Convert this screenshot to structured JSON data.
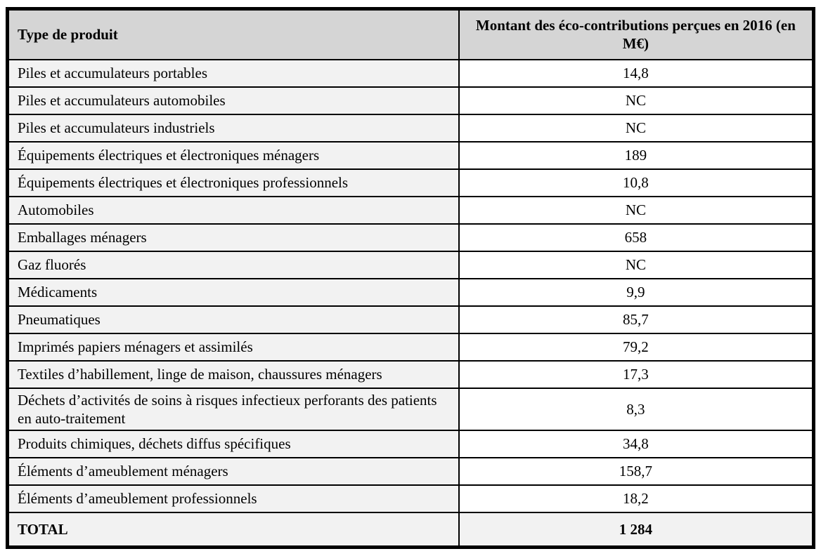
{
  "table": {
    "headers": {
      "product": "Type de produit",
      "amount": "Montant des éco-contributions perçues en 2016 (en M€)"
    },
    "rows": [
      {
        "label": "Piles et accumulateurs portables",
        "value": "14,8"
      },
      {
        "label": "Piles et accumulateurs automobiles",
        "value": "NC"
      },
      {
        "label": "Piles et accumulateurs industriels",
        "value": "NC"
      },
      {
        "label": "Équipements électriques et électroniques ménagers",
        "value": "189"
      },
      {
        "label": "Équipements électriques et électroniques professionnels",
        "value": "10,8"
      },
      {
        "label": "Automobiles",
        "value": "NC"
      },
      {
        "label": "Emballages ménagers",
        "value": "658"
      },
      {
        "label": "Gaz fluorés",
        "value": "NC"
      },
      {
        "label": "Médicaments",
        "value": "9,9"
      },
      {
        "label": "Pneumatiques",
        "value": "85,7"
      },
      {
        "label": "Imprimés papiers ménagers et assimilés",
        "value": "79,2"
      },
      {
        "label": "Textiles d’habillement, linge de maison, chaussures ménagers",
        "value": "17,3"
      },
      {
        "label": "Déchets d’activités de soins à risques infectieux perforants des patients en auto-traitement",
        "value": "8,3"
      },
      {
        "label": "Produits chimiques, déchets diffus spécifiques",
        "value": "34,8"
      },
      {
        "label": "Éléments d’ameublement ménagers",
        "value": "158,7"
      },
      {
        "label": "Éléments d’ameublement professionnels",
        "value": "18,2"
      }
    ],
    "total": {
      "label": "TOTAL",
      "value": "1 284"
    }
  },
  "colors": {
    "header_bg": "#d5d5d5",
    "label_col_bg": "#f2f2f2",
    "value_col_bg": "#ffffff",
    "total_row_bg": "#f2f2f2",
    "border": "#000000"
  }
}
